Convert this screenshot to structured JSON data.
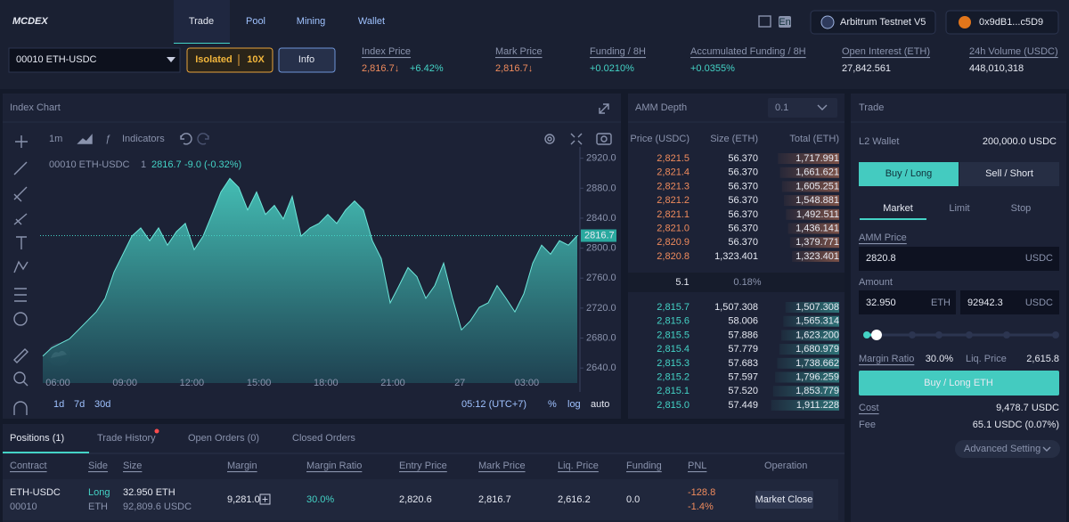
{
  "header": {
    "logo": "MCDEX",
    "nav": [
      "Trade",
      "Pool",
      "Mining",
      "Wallet"
    ],
    "language": "En",
    "network": "Arbitrum Testnet V5",
    "wallet": "0x9dB1...c5D9"
  },
  "market_bar": {
    "contract": "00010 ETH-USDC",
    "margin_mode": "Isolated",
    "leverage": "10X",
    "info": "Info",
    "stats": [
      {
        "label": "Index Price",
        "value": "2,816.7↓",
        "change": "+6.42%"
      },
      {
        "label": "Mark Price",
        "value": "2,816.7↓"
      },
      {
        "label": "Funding / 8H",
        "value": "+0.0210%"
      },
      {
        "label": "Accumulated Funding / 8H",
        "value": "+0.0355%"
      },
      {
        "label": "Open Interest (ETH)",
        "value": "27,842.561"
      },
      {
        "label": "24h Volume (USDC)",
        "value": "448,010,318"
      }
    ]
  },
  "chart": {
    "title": "Index Chart",
    "interval": "1m",
    "indicators": "Indicators",
    "legend": {
      "symbol": "00010 ETH-USDC",
      "interval": "1",
      "change": "-9.0 (-0.32%)"
    },
    "ylim": [
      2620,
      2935
    ],
    "yticks": [
      {
        "value": 2920,
        "label": "2920.0"
      },
      {
        "value": 2880,
        "label": "2880.0"
      },
      {
        "value": 2840,
        "label": "2840.0"
      },
      {
        "value": 2800,
        "label": "2800.0"
      },
      {
        "value": 2760,
        "label": "2760.0"
      },
      {
        "value": 2720,
        "label": "2720.0"
      },
      {
        "value": 2680,
        "label": "2680.0"
      },
      {
        "value": 2640,
        "label": "2640.0"
      }
    ],
    "last_price": 2816.7,
    "values": [
      2656,
      2667,
      2673,
      2679,
      2691,
      2703,
      2715,
      2733,
      2768,
      2792,
      2816,
      2827,
      2810,
      2827,
      2804,
      2822,
      2833,
      2798,
      2816,
      2845,
      2875,
      2893,
      2881,
      2851,
      2875,
      2845,
      2857,
      2839,
      2869,
      2816,
      2827,
      2833,
      2845,
      2833,
      2851,
      2863,
      2851,
      2810,
      2786,
      2727,
      2750,
      2774,
      2762,
      2733,
      2750,
      2780,
      2733,
      2691,
      2703,
      2721,
      2727,
      2750,
      2733,
      2715,
      2739,
      2780,
      2804,
      2792,
      2810,
      2804,
      2816.7
    ],
    "x_labels": [
      "06:00",
      "09:00",
      "12:00",
      "15:00",
      "18:00",
      "21:00",
      "27",
      "03:00"
    ],
    "ranges": [
      "1d",
      "7d",
      "30d"
    ],
    "time": "05:12 (UTC+7)",
    "scale_options": [
      "%",
      "log",
      "auto"
    ]
  },
  "depth": {
    "title": "AMM Depth",
    "precision": "0.1",
    "columns": [
      "Price (USDC)",
      "Size (ETH)",
      "Total (ETH)"
    ],
    "asks": [
      [
        "2,821.5",
        "56.370",
        "1,717.991"
      ],
      [
        "2,821.4",
        "56.370",
        "1,661.621"
      ],
      [
        "2,821.3",
        "56.370",
        "1,605.251"
      ],
      [
        "2,821.2",
        "56.370",
        "1,548.881"
      ],
      [
        "2,821.1",
        "56.370",
        "1,492.511"
      ],
      [
        "2,821.0",
        "56.370",
        "1,436.141"
      ],
      [
        "2,820.9",
        "56.370",
        "1,379.771"
      ],
      [
        "2,820.8",
        "1,323.401",
        "1,323.401"
      ]
    ],
    "spread": "5.1",
    "spread_pct": "0.18%",
    "bids": [
      [
        "2,815.7",
        "1,507.308",
        "1,507.308"
      ],
      [
        "2,815.6",
        "58.006",
        "1,565.314"
      ],
      [
        "2,815.5",
        "57.886",
        "1,623.200"
      ],
      [
        "2,815.4",
        "57.779",
        "1,680.979"
      ],
      [
        "2,815.3",
        "57.683",
        "1,738.662"
      ],
      [
        "2,815.2",
        "57.597",
        "1,796.259"
      ],
      [
        "2,815.1",
        "57.520",
        "1,853.779"
      ],
      [
        "2,815.0",
        "57.449",
        "1,911.228"
      ]
    ]
  },
  "trade": {
    "title": "Trade",
    "wallet_label": "L2 Wallet",
    "wallet_balance": "200,000.0 USDC",
    "sides": [
      "Buy / Long",
      "Sell / Short"
    ],
    "order_types": [
      "Market",
      "Limit",
      "Stop"
    ],
    "amm_price_label": "AMM Price",
    "amm_price": "2820.8",
    "amm_price_unit": "USDC",
    "amount_label": "Amount",
    "amount": "32.950",
    "amount_unit": "ETH",
    "amount_value": "92942.3",
    "amount_value_unit": "USDC",
    "margin_ratio_label": "Margin Ratio",
    "margin_ratio": "30.0%",
    "liq_price_label": "Liq. Price",
    "liq_price": "2,615.8",
    "submit": "Buy / Long ETH",
    "cost_label": "Cost",
    "cost": "9,478.7 USDC",
    "fee_label": "Fee",
    "fee": "65.1 USDC (0.07%)",
    "advanced": "Advanced Setting"
  },
  "positions": {
    "tabs": [
      "Positions (1)",
      "Trade History",
      "Open Orders (0)",
      "Closed Orders"
    ],
    "columns": [
      "Contract",
      "Side",
      "Size",
      "Margin",
      "Margin Ratio",
      "Entry Price",
      "Mark Price",
      "Liq. Price",
      "Funding",
      "PNL",
      "Operation"
    ],
    "rows": [
      {
        "contract": "ETH-USDC",
        "contract_id": "00010",
        "side": "Long",
        "side_unit": "ETH",
        "size": "32.950 ETH",
        "size_value": "92,809.6 USDC",
        "margin": "9,281.0",
        "margin_ratio": "30.0%",
        "entry_price": "2,820.6",
        "mark_price": "2,816.7",
        "liq_price": "2,616.2",
        "funding": "0.0",
        "pnl": "-128.8",
        "pnl_pct": "-1.4%",
        "operation": "Market Close"
      }
    ]
  }
}
